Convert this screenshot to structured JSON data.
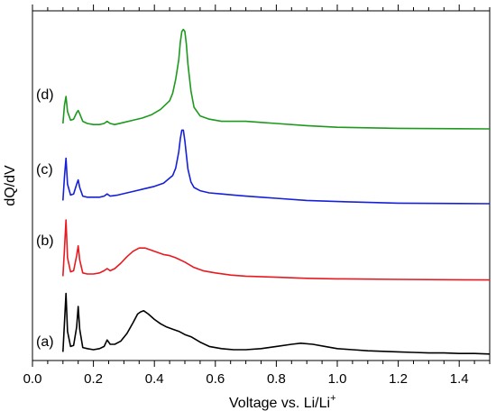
{
  "chart_data": {
    "type": "line",
    "title": "",
    "xlabel": "Voltage vs. Li/Li",
    "xlabel_superscript": "+",
    "ylabel": "dQ/dV",
    "xlim": [
      0.0,
      1.5
    ],
    "x_ticks": [
      "0.0",
      "0.2",
      "0.4",
      "0.6",
      "0.8",
      "1.0",
      "1.2",
      "1.4"
    ],
    "y_tick_labels": "none",
    "grid": false,
    "legend": "none",
    "series": [
      {
        "name": "(a)",
        "color": "#000000",
        "points": [
          [
            0.1,
            0.03
          ],
          [
            0.105,
            0.3
          ],
          [
            0.11,
            0.57
          ],
          [
            0.115,
            0.22
          ],
          [
            0.125,
            0.08
          ],
          [
            0.135,
            0.09
          ],
          [
            0.145,
            0.26
          ],
          [
            0.15,
            0.45
          ],
          [
            0.155,
            0.24
          ],
          [
            0.165,
            0.07
          ],
          [
            0.18,
            0.06
          ],
          [
            0.2,
            0.05
          ],
          [
            0.22,
            0.06
          ],
          [
            0.235,
            0.08
          ],
          [
            0.245,
            0.14
          ],
          [
            0.255,
            0.1
          ],
          [
            0.27,
            0.1
          ],
          [
            0.29,
            0.13
          ],
          [
            0.31,
            0.2
          ],
          [
            0.33,
            0.3
          ],
          [
            0.345,
            0.38
          ],
          [
            0.355,
            0.4
          ],
          [
            0.365,
            0.41
          ],
          [
            0.38,
            0.38
          ],
          [
            0.4,
            0.33
          ],
          [
            0.42,
            0.29
          ],
          [
            0.44,
            0.26
          ],
          [
            0.46,
            0.24
          ],
          [
            0.48,
            0.22
          ],
          [
            0.5,
            0.19
          ],
          [
            0.52,
            0.17
          ],
          [
            0.55,
            0.12
          ],
          [
            0.58,
            0.08
          ],
          [
            0.62,
            0.06
          ],
          [
            0.66,
            0.05
          ],
          [
            0.7,
            0.05
          ],
          [
            0.75,
            0.06
          ],
          [
            0.8,
            0.08
          ],
          [
            0.85,
            0.1
          ],
          [
            0.88,
            0.11
          ],
          [
            0.92,
            0.1
          ],
          [
            0.96,
            0.08
          ],
          [
            1.0,
            0.06
          ],
          [
            1.05,
            0.05
          ],
          [
            1.1,
            0.04
          ],
          [
            1.15,
            0.035
          ],
          [
            1.2,
            0.03
          ],
          [
            1.25,
            0.025
          ],
          [
            1.3,
            0.02
          ],
          [
            1.35,
            0.02
          ],
          [
            1.4,
            0.015
          ],
          [
            1.45,
            0.015
          ],
          [
            1.5,
            0.01
          ]
        ]
      },
      {
        "name": "(b)",
        "color": "#e8191f",
        "points": [
          [
            0.1,
            0.03
          ],
          [
            0.105,
            0.28
          ],
          [
            0.11,
            0.55
          ],
          [
            0.115,
            0.2
          ],
          [
            0.125,
            0.07
          ],
          [
            0.135,
            0.08
          ],
          [
            0.145,
            0.22
          ],
          [
            0.15,
            0.31
          ],
          [
            0.155,
            0.18
          ],
          [
            0.165,
            0.06
          ],
          [
            0.18,
            0.05
          ],
          [
            0.2,
            0.05
          ],
          [
            0.22,
            0.06
          ],
          [
            0.235,
            0.08
          ],
          [
            0.245,
            0.1
          ],
          [
            0.255,
            0.08
          ],
          [
            0.27,
            0.1
          ],
          [
            0.29,
            0.15
          ],
          [
            0.31,
            0.21
          ],
          [
            0.33,
            0.26
          ],
          [
            0.35,
            0.29
          ],
          [
            0.37,
            0.29
          ],
          [
            0.39,
            0.27
          ],
          [
            0.41,
            0.25
          ],
          [
            0.43,
            0.23
          ],
          [
            0.45,
            0.22
          ],
          [
            0.47,
            0.2
          ],
          [
            0.5,
            0.16
          ],
          [
            0.53,
            0.11
          ],
          [
            0.56,
            0.08
          ],
          [
            0.6,
            0.06
          ],
          [
            0.65,
            0.04
          ],
          [
            0.7,
            0.03
          ],
          [
            0.8,
            0.02
          ],
          [
            0.9,
            0.01
          ],
          [
            1.0,
            0.005
          ],
          [
            1.2,
            0.0
          ],
          [
            1.5,
            -0.005
          ]
        ]
      },
      {
        "name": "(c)",
        "color": "#1520d8",
        "points": [
          [
            0.1,
            0.03
          ],
          [
            0.105,
            0.25
          ],
          [
            0.11,
            0.42
          ],
          [
            0.115,
            0.18
          ],
          [
            0.125,
            0.08
          ],
          [
            0.135,
            0.09
          ],
          [
            0.145,
            0.18
          ],
          [
            0.15,
            0.22
          ],
          [
            0.155,
            0.15
          ],
          [
            0.165,
            0.07
          ],
          [
            0.18,
            0.06
          ],
          [
            0.2,
            0.06
          ],
          [
            0.22,
            0.06
          ],
          [
            0.235,
            0.07
          ],
          [
            0.245,
            0.09
          ],
          [
            0.255,
            0.07
          ],
          [
            0.28,
            0.08
          ],
          [
            0.31,
            0.1
          ],
          [
            0.34,
            0.12
          ],
          [
            0.37,
            0.14
          ],
          [
            0.4,
            0.16
          ],
          [
            0.43,
            0.19
          ],
          [
            0.46,
            0.26
          ],
          [
            0.47,
            0.33
          ],
          [
            0.48,
            0.48
          ],
          [
            0.485,
            0.6
          ],
          [
            0.49,
            0.68
          ],
          [
            0.495,
            0.68
          ],
          [
            0.5,
            0.58
          ],
          [
            0.505,
            0.45
          ],
          [
            0.51,
            0.32
          ],
          [
            0.52,
            0.2
          ],
          [
            0.53,
            0.15
          ],
          [
            0.55,
            0.12
          ],
          [
            0.58,
            0.1
          ],
          [
            0.62,
            0.09
          ],
          [
            0.66,
            0.08
          ],
          [
            0.7,
            0.07
          ],
          [
            0.75,
            0.06
          ],
          [
            0.8,
            0.05
          ],
          [
            0.9,
            0.03
          ],
          [
            1.0,
            0.02
          ],
          [
            1.2,
            0.005
          ],
          [
            1.5,
            0.0
          ]
        ]
      },
      {
        "name": "(d)",
        "color": "#1d9a1d",
        "points": [
          [
            0.1,
            0.05
          ],
          [
            0.105,
            0.22
          ],
          [
            0.11,
            0.3
          ],
          [
            0.115,
            0.16
          ],
          [
            0.125,
            0.08
          ],
          [
            0.135,
            0.09
          ],
          [
            0.145,
            0.15
          ],
          [
            0.15,
            0.17
          ],
          [
            0.155,
            0.14
          ],
          [
            0.165,
            0.07
          ],
          [
            0.18,
            0.05
          ],
          [
            0.2,
            0.04
          ],
          [
            0.22,
            0.04
          ],
          [
            0.235,
            0.05
          ],
          [
            0.245,
            0.07
          ],
          [
            0.255,
            0.05
          ],
          [
            0.27,
            0.04
          ],
          [
            0.3,
            0.06
          ],
          [
            0.33,
            0.08
          ],
          [
            0.36,
            0.1
          ],
          [
            0.39,
            0.13
          ],
          [
            0.42,
            0.18
          ],
          [
            0.45,
            0.26
          ],
          [
            0.46,
            0.33
          ],
          [
            0.47,
            0.46
          ],
          [
            0.48,
            0.64
          ],
          [
            0.485,
            0.8
          ],
          [
            0.49,
            0.9
          ],
          [
            0.495,
            0.92
          ],
          [
            0.5,
            0.9
          ],
          [
            0.505,
            0.78
          ],
          [
            0.51,
            0.6
          ],
          [
            0.52,
            0.35
          ],
          [
            0.53,
            0.2
          ],
          [
            0.55,
            0.12
          ],
          [
            0.58,
            0.09
          ],
          [
            0.62,
            0.07
          ],
          [
            0.66,
            0.07
          ],
          [
            0.7,
            0.07
          ],
          [
            0.75,
            0.06
          ],
          [
            0.8,
            0.05
          ],
          [
            0.9,
            0.03
          ],
          [
            1.0,
            0.015
          ],
          [
            1.2,
            0.005
          ],
          [
            1.5,
            0.0
          ]
        ]
      }
    ],
    "series_labels": [
      "(a)",
      "(b)",
      "(c)",
      "(d)"
    ]
  }
}
